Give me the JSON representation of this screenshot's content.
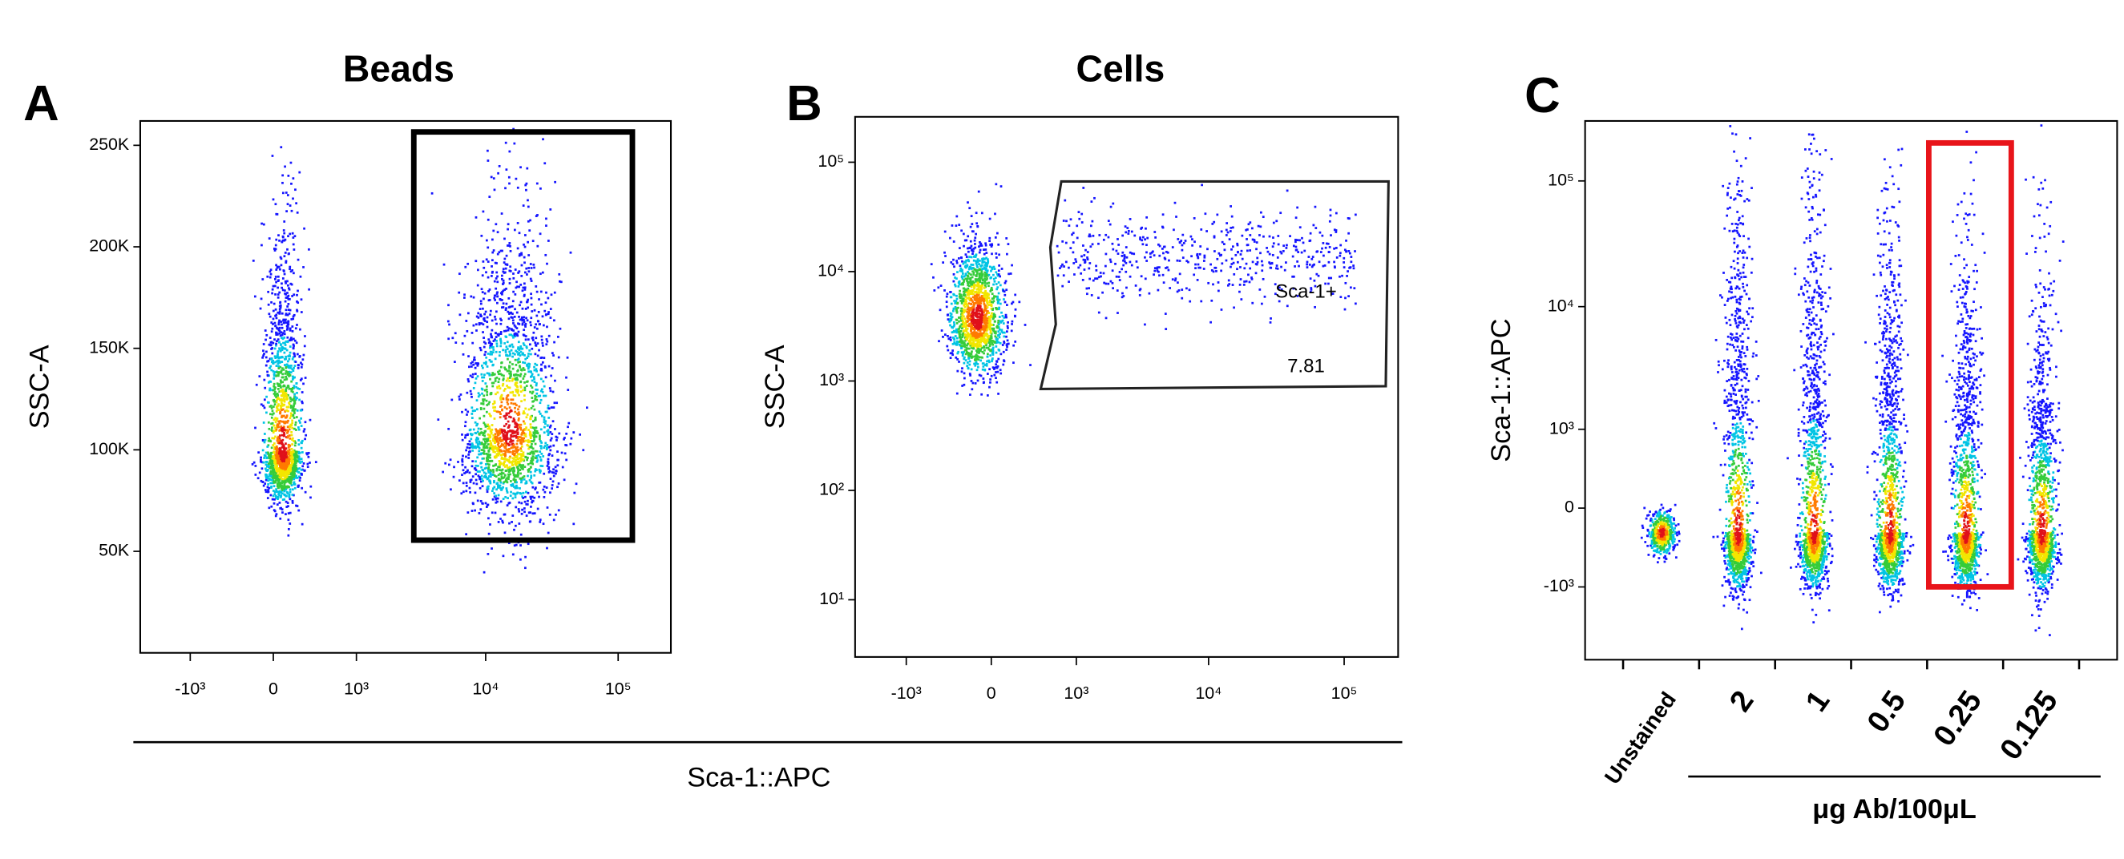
{
  "shared_xlabel": "Sca-1::APC",
  "chart_data": [
    {
      "type": "scatter",
      "panel": "A",
      "title": "Beads",
      "ylabel": "SSC-A",
      "xscale": "asinh",
      "yscale": "linear",
      "xlim": [
        -2500,
        250000
      ],
      "ylim": [
        0,
        262000
      ],
      "xticks": [
        {
          "value": -1000,
          "label": "-10³"
        },
        0,
        {
          "value": 1000,
          "label": "10³"
        },
        {
          "value": 10000,
          "label": "10⁴"
        },
        {
          "value": 100000,
          "label": "10⁵"
        }
      ],
      "yticks": [
        {
          "value": 50000,
          "label": "50K"
        },
        {
          "value": 100000,
          "label": "100K"
        },
        {
          "value": 150000,
          "label": "150K"
        },
        {
          "value": 200000,
          "label": "200K"
        },
        {
          "value": 250000,
          "label": "250K"
        }
      ]
    },
    {
      "type": "scatter",
      "panel": "B",
      "title": "Cells",
      "ylabel": "SSC-A",
      "xscale": "asinh",
      "yscale": "log",
      "xlim": [
        -2500,
        250000
      ],
      "ylim": [
        3,
        260000
      ],
      "xticks": [
        {
          "value": -1000,
          "label": "-10³"
        },
        0,
        {
          "value": 1000,
          "label": "10³"
        },
        {
          "value": 10000,
          "label": "10⁴"
        },
        {
          "value": 100000,
          "label": "10⁵"
        }
      ],
      "yticks": [
        {
          "value": 10,
          "label": "10¹"
        },
        {
          "value": 100,
          "label": "10²"
        },
        {
          "value": 1000,
          "label": "10³"
        },
        {
          "value": 10000,
          "label": "10⁴"
        },
        {
          "value": 100000,
          "label": "10⁵"
        }
      ],
      "annotations": [
        {
          "label": "Sca-1+",
          "value": 7.81
        }
      ]
    },
    {
      "type": "scatter",
      "panel": "C",
      "ylabel": "Sca-1::APC",
      "xlabel": "μg Ab/100μL",
      "yscale": "asinh",
      "ylim": [
        -4000,
        300000
      ],
      "yticks": [
        {
          "value": -1000,
          "label": "-10³"
        },
        0,
        {
          "value": 1000,
          "label": "10³"
        },
        {
          "value": 10000,
          "label": "10⁴"
        },
        {
          "value": 100000,
          "label": "10⁵"
        }
      ],
      "categories": [
        "Unstained",
        "2",
        "1",
        "0.5",
        "0.25",
        "0.125"
      ]
    }
  ]
}
